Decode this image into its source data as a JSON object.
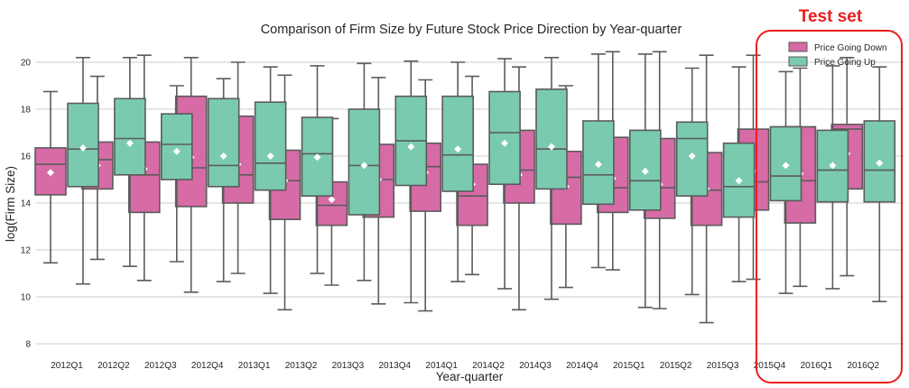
{
  "chart_data": {
    "type": "box",
    "title": "Comparison of Firm Size by Future Stock Price Direction by Year-quarter",
    "xlabel": "Year-quarter",
    "ylabel": "log(Firm Size)",
    "ylim": [
      7.5,
      21
    ],
    "yticks": [
      8,
      10,
      12,
      14,
      16,
      18,
      20
    ],
    "grid": true,
    "legend_position": "top-right",
    "annotation": {
      "text": "Test set",
      "color": "#ee1c1c",
      "covers": [
        "2015Q4",
        "2016Q1",
        "2016Q2"
      ]
    },
    "categories": [
      "2012Q1",
      "2012Q2",
      "2012Q3",
      "2012Q4",
      "2013Q1",
      "2013Q2",
      "2013Q3",
      "2013Q4",
      "2014Q1",
      "2014Q2",
      "2014Q3",
      "2014Q4",
      "2015Q1",
      "2015Q2",
      "2015Q3",
      "2015Q4",
      "2016Q1",
      "2016Q2"
    ],
    "series": [
      {
        "name": "Price Going Down",
        "color": "#d66ba6",
        "boxes": [
          {
            "whislo": 11.45,
            "q1": 14.35,
            "med": 15.65,
            "q3": 16.35,
            "whishi": 18.75,
            "mean": 15.3
          },
          {
            "whislo": 11.6,
            "q1": 14.6,
            "med": 15.85,
            "q3": 16.6,
            "whishi": 19.4,
            "mean": 15.6
          },
          {
            "whislo": 10.7,
            "q1": 13.6,
            "med": 15.2,
            "q3": 16.6,
            "whishi": 20.3,
            "mean": 15.45
          },
          {
            "whislo": 10.2,
            "q1": 13.85,
            "med": 15.5,
            "q3": 18.55,
            "whishi": 20.2,
            "mean": 15.95
          },
          {
            "whislo": 11.0,
            "q1": 14.0,
            "med": 15.2,
            "q3": 17.7,
            "whishi": 20.0,
            "mean": 15.65
          },
          {
            "whislo": 9.45,
            "q1": 13.3,
            "med": 14.95,
            "q3": 16.25,
            "whishi": 19.45,
            "mean": 14.95
          },
          {
            "whislo": 10.5,
            "q1": 13.05,
            "med": 13.9,
            "q3": 14.9,
            "whishi": 17.6,
            "mean": 14.15
          },
          {
            "whislo": 9.7,
            "q1": 13.4,
            "med": 15.0,
            "q3": 16.5,
            "whishi": 19.35,
            "mean": 15.0
          },
          {
            "whislo": 9.4,
            "q1": 13.65,
            "med": 15.55,
            "q3": 16.55,
            "whishi": 19.25,
            "mean": 15.3
          },
          {
            "whislo": 10.95,
            "q1": 13.05,
            "med": 14.3,
            "q3": 15.65,
            "whishi": 19.4,
            "mean": 14.8
          },
          {
            "whislo": 9.45,
            "q1": 14.0,
            "med": 15.4,
            "q3": 17.1,
            "whishi": 19.8,
            "mean": 15.2
          },
          {
            "whislo": 10.4,
            "q1": 13.1,
            "med": 15.1,
            "q3": 16.2,
            "whishi": 19.0,
            "mean": 14.7
          },
          {
            "whislo": 11.15,
            "q1": 13.6,
            "med": 14.65,
            "q3": 16.8,
            "whishi": 20.45,
            "mean": 15.05
          },
          {
            "whislo": 9.5,
            "q1": 13.35,
            "med": 14.65,
            "q3": 16.75,
            "whishi": 20.45,
            "mean": 14.8
          },
          {
            "whislo": 8.9,
            "q1": 13.05,
            "med": 14.55,
            "q3": 16.15,
            "whishi": 20.3,
            "mean": 14.6
          },
          {
            "whislo": 10.75,
            "q1": 13.7,
            "med": 14.9,
            "q3": 17.15,
            "whishi": 20.3,
            "mean": 15.35
          },
          {
            "whislo": 10.45,
            "q1": 13.15,
            "med": 14.95,
            "q3": 17.25,
            "whishi": 19.75,
            "mean": 15.25
          },
          {
            "whislo": 10.9,
            "q1": 14.6,
            "med": 17.15,
            "q3": 17.35,
            "whishi": 20.2,
            "mean": 16.1
          }
        ]
      },
      {
        "name": "Price Going Up",
        "color": "#7acab0",
        "boxes": [
          {
            "whislo": 10.55,
            "q1": 14.7,
            "med": 16.3,
            "q3": 18.25,
            "whishi": 20.2,
            "mean": 16.35
          },
          {
            "whislo": 11.3,
            "q1": 15.2,
            "med": 16.75,
            "q3": 18.45,
            "whishi": 20.2,
            "mean": 16.55
          },
          {
            "whislo": 11.5,
            "q1": 15.0,
            "med": 16.5,
            "q3": 17.8,
            "whishi": 19.0,
            "mean": 16.2
          },
          {
            "whislo": 10.65,
            "q1": 14.7,
            "med": 15.6,
            "q3": 18.45,
            "whishi": 19.3,
            "mean": 16.0
          },
          {
            "whislo": 10.15,
            "q1": 14.55,
            "med": 15.7,
            "q3": 18.3,
            "whishi": 19.8,
            "mean": 16.0
          },
          {
            "whislo": 11.0,
            "q1": 14.3,
            "med": 16.1,
            "q3": 17.65,
            "whishi": 19.85,
            "mean": 15.95
          },
          {
            "whislo": 10.7,
            "q1": 13.5,
            "med": 15.6,
            "q3": 18.0,
            "whishi": 19.95,
            "mean": 15.6
          },
          {
            "whislo": 9.75,
            "q1": 14.75,
            "med": 16.65,
            "q3": 18.55,
            "whishi": 20.05,
            "mean": 16.4
          },
          {
            "whislo": 10.65,
            "q1": 14.5,
            "med": 16.05,
            "q3": 18.55,
            "whishi": 20.0,
            "mean": 16.3
          },
          {
            "whislo": 10.35,
            "q1": 14.8,
            "med": 17.0,
            "q3": 18.75,
            "whishi": 20.15,
            "mean": 16.55
          },
          {
            "whislo": 9.9,
            "q1": 14.6,
            "med": 16.3,
            "q3": 18.85,
            "whishi": 20.2,
            "mean": 16.4
          },
          {
            "whislo": 11.25,
            "q1": 13.95,
            "med": 15.2,
            "q3": 17.5,
            "whishi": 20.35,
            "mean": 15.65
          },
          {
            "whislo": 9.55,
            "q1": 13.7,
            "med": 14.95,
            "q3": 17.1,
            "whishi": 20.35,
            "mean": 15.35
          },
          {
            "whislo": 10.1,
            "q1": 14.3,
            "med": 16.75,
            "q3": 17.45,
            "whishi": 19.75,
            "mean": 16.0
          },
          {
            "whislo": 10.65,
            "q1": 13.4,
            "med": 14.7,
            "q3": 16.55,
            "whishi": 19.8,
            "mean": 14.95
          },
          {
            "whislo": 10.15,
            "q1": 14.1,
            "med": 15.15,
            "q3": 17.25,
            "whishi": 19.6,
            "mean": 15.6
          },
          {
            "whislo": 10.35,
            "q1": 14.05,
            "med": 15.4,
            "q3": 17.1,
            "whishi": 19.85,
            "mean": 15.6
          },
          {
            "whislo": 9.8,
            "q1": 14.05,
            "med": 15.4,
            "q3": 17.5,
            "whishi": 19.8,
            "mean": 15.7
          }
        ]
      }
    ]
  }
}
